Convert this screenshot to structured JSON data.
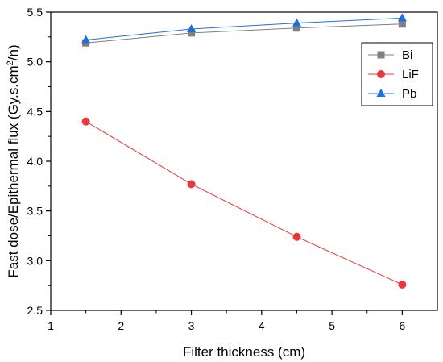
{
  "chart_data": {
    "type": "line",
    "xlabel": "Filter thickness (cm)",
    "ylabel_parts": [
      "Fast dose/Epithermal flux (Gy.s.cm",
      "2",
      "/n)"
    ],
    "xlim": [
      1,
      6.5
    ],
    "ylim": [
      2.5,
      5.5
    ],
    "xticks": [
      1,
      2,
      3,
      4,
      5,
      6
    ],
    "yticks": [
      2.5,
      3.0,
      3.5,
      4.0,
      4.5,
      5.0,
      5.5
    ],
    "ytick_labels": [
      "2.5",
      "3.0",
      "3.5",
      "4.0",
      "4.5",
      "5.0",
      "5.5"
    ],
    "grid": false,
    "legend_position": "top-right",
    "series": [
      {
        "name": "Bi",
        "x": [
          1.5,
          3,
          4.5,
          6
        ],
        "y": [
          5.19,
          5.29,
          5.34,
          5.38
        ],
        "color": "#7f7f7f",
        "marker": "square"
      },
      {
        "name": "LiF",
        "x": [
          1.5,
          3,
          4.5,
          6
        ],
        "y": [
          4.4,
          3.77,
          3.24,
          2.76
        ],
        "color": "#e8383b",
        "marker": "circle"
      },
      {
        "name": "Pb",
        "x": [
          1.5,
          3,
          4.5,
          6
        ],
        "y": [
          5.22,
          5.33,
          5.39,
          5.44
        ],
        "color": "#1f6fe0",
        "marker": "triangle"
      }
    ]
  }
}
